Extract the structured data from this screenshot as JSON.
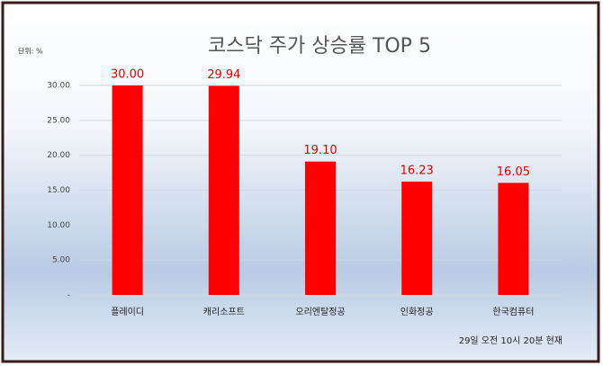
{
  "chart_data": {
    "type": "bar",
    "title": "코스닥 주가 상승률 TOP 5",
    "unit_label": "단위: %",
    "footnote": "29일  오전  10시 20분 현재",
    "categories": [
      "플레이디",
      "캐리소프트",
      "오리엔탈정공",
      "인화정공",
      "한국컴퓨터"
    ],
    "values": [
      30,
      29.94,
      19.1,
      16.23,
      16.05
    ],
    "value_labels": [
      "30.00",
      "29.94",
      "19.10",
      "16.23",
      "16.05"
    ],
    "color": "#ff0000",
    "ylim": [
      0,
      30
    ],
    "yticks": [
      {
        "value": 0,
        "label": "-"
      },
      {
        "value": 5,
        "label": "5.00"
      },
      {
        "value": 10,
        "label": "10.00"
      },
      {
        "value": 15,
        "label": "15.00"
      },
      {
        "value": 20,
        "label": "20.00"
      },
      {
        "value": 25,
        "label": "25.00"
      },
      {
        "value": 30,
        "label": "30.00"
      }
    ],
    "grid": true
  }
}
